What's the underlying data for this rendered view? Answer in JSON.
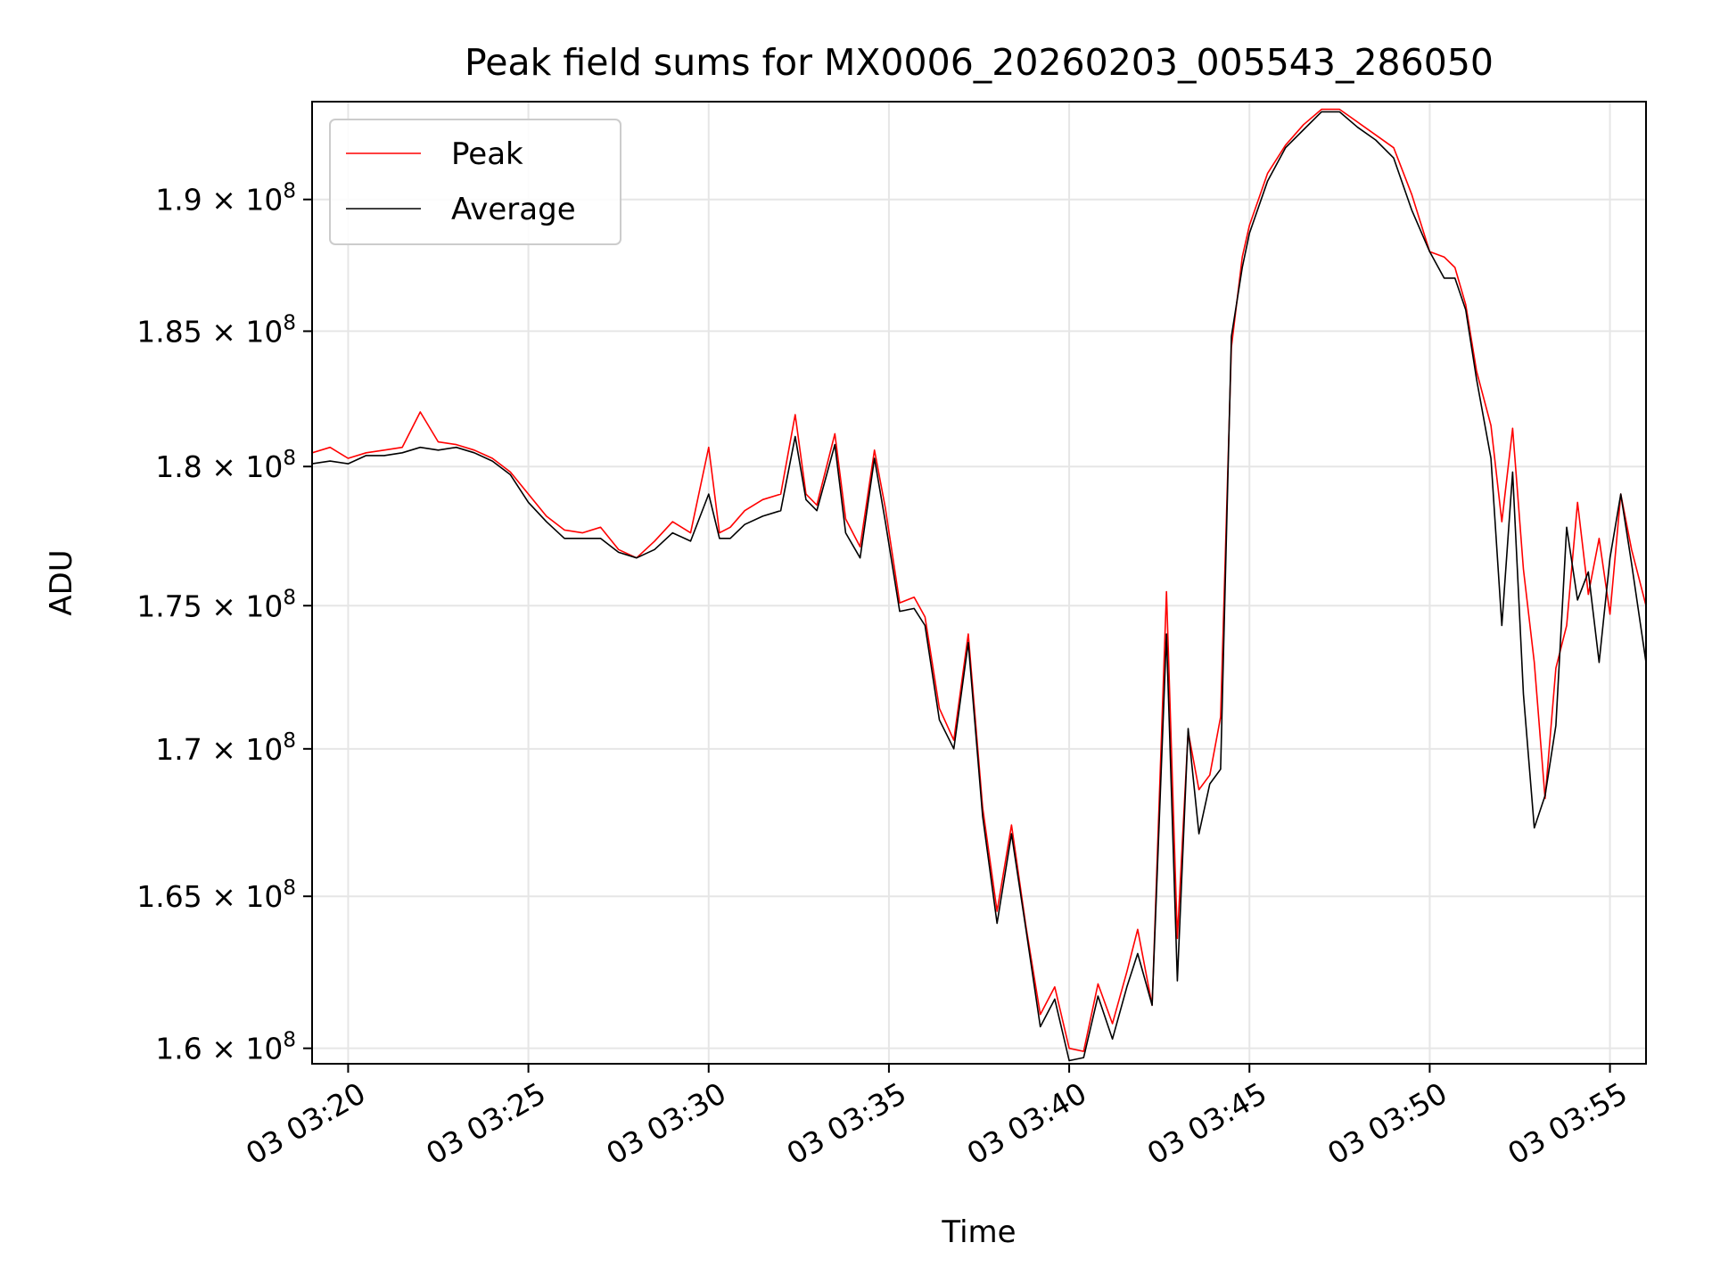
{
  "chart_data": {
    "type": "line",
    "title": "Peak field sums for MX0006_20260203_005543_286050",
    "xlabel": "Time",
    "ylabel": "ADU",
    "x_range_minutes": [
      199.0,
      236.0
    ],
    "y_range": [
      159500000,
      193800000
    ],
    "y_scale": "log",
    "grid": true,
    "legend_position": "upper-left",
    "x_ticks": [
      {
        "t": 200,
        "label": "03 03:20"
      },
      {
        "t": 205,
        "label": "03 03:25"
      },
      {
        "t": 210,
        "label": "03 03:30"
      },
      {
        "t": 215,
        "label": "03 03:35"
      },
      {
        "t": 220,
        "label": "03 03:40"
      },
      {
        "t": 225,
        "label": "03 03:45"
      },
      {
        "t": 230,
        "label": "03 03:50"
      },
      {
        "t": 235,
        "label": "03 03:55"
      }
    ],
    "y_ticks": [
      {
        "v": 160000000,
        "mant": "1.6",
        "exp": "8"
      },
      {
        "v": 165000000,
        "mant": "1.65",
        "exp": "8"
      },
      {
        "v": 170000000,
        "mant": "1.7",
        "exp": "8"
      },
      {
        "v": 175000000,
        "mant": "1.75",
        "exp": "8"
      },
      {
        "v": 180000000,
        "mant": "1.8",
        "exp": "8"
      },
      {
        "v": 185000000,
        "mant": "1.85",
        "exp": "8"
      },
      {
        "v": 190000000,
        "mant": "1.9",
        "exp": "8"
      }
    ],
    "series": [
      {
        "name": "Peak",
        "color": "#ff0000",
        "t": [
          199.0,
          199.5,
          200.0,
          200.5,
          201.0,
          201.5,
          202.0,
          202.5,
          203.0,
          203.5,
          204.0,
          204.5,
          205.0,
          205.5,
          206.0,
          206.5,
          207.0,
          207.5,
          208.0,
          208.5,
          209.0,
          209.5,
          210.0,
          210.3,
          210.6,
          211.0,
          211.5,
          212.0,
          212.4,
          212.7,
          213.0,
          213.5,
          213.8,
          214.2,
          214.6,
          214.9,
          215.3,
          215.7,
          216.0,
          216.4,
          216.8,
          217.2,
          217.6,
          218.0,
          218.4,
          218.8,
          219.2,
          219.6,
          220.0,
          220.4,
          220.8,
          221.2,
          221.6,
          221.9,
          222.3,
          222.7,
          223.0,
          223.3,
          223.6,
          223.9,
          224.2,
          224.5,
          224.8,
          225.0,
          225.5,
          226.0,
          226.5,
          227.0,
          227.5,
          228.0,
          228.5,
          229.0,
          229.5,
          230.0,
          230.4,
          230.7,
          231.0,
          231.3,
          231.7,
          232.0,
          232.3,
          232.6,
          232.9,
          233.2,
          233.5,
          233.8,
          234.1,
          234.4,
          234.7,
          235.0,
          235.3,
          235.6,
          236.0
        ],
        "v": [
          180500000,
          180700000,
          180300000,
          180500000,
          180600000,
          180700000,
          182000000,
          180900000,
          180800000,
          180600000,
          180300000,
          179800000,
          179000000,
          178200000,
          177700000,
          177600000,
          177800000,
          177000000,
          176700000,
          177300000,
          178000000,
          177600000,
          180700000,
          177600000,
          177800000,
          178400000,
          178800000,
          179000000,
          181900000,
          179000000,
          178600000,
          181200000,
          178100000,
          177100000,
          180600000,
          178500000,
          175100000,
          175300000,
          174600000,
          171400000,
          170300000,
          174000000,
          168000000,
          164500000,
          167400000,
          164000000,
          161100000,
          162000000,
          160000000,
          159900000,
          162100000,
          160800000,
          162500000,
          163900000,
          161400000,
          175500000,
          163600000,
          170600000,
          168600000,
          169100000,
          171100000,
          184400000,
          187800000,
          189000000,
          191000000,
          192100000,
          192900000,
          193500000,
          193500000,
          193000000,
          192500000,
          192000000,
          190200000,
          188000000,
          187800000,
          187400000,
          186000000,
          183500000,
          181500000,
          178000000,
          181400000,
          176300000,
          173000000,
          168300000,
          172800000,
          174300000,
          178700000,
          175400000,
          177400000,
          174700000,
          179000000,
          177000000,
          175000000
        ]
      },
      {
        "name": "Average",
        "color": "#000000",
        "t": [
          199.0,
          199.5,
          200.0,
          200.5,
          201.0,
          201.5,
          202.0,
          202.5,
          203.0,
          203.5,
          204.0,
          204.5,
          205.0,
          205.5,
          206.0,
          206.5,
          207.0,
          207.5,
          208.0,
          208.5,
          209.0,
          209.5,
          210.0,
          210.3,
          210.6,
          211.0,
          211.5,
          212.0,
          212.4,
          212.7,
          213.0,
          213.5,
          213.8,
          214.2,
          214.6,
          214.9,
          215.3,
          215.7,
          216.0,
          216.4,
          216.8,
          217.2,
          217.6,
          218.0,
          218.4,
          218.8,
          219.2,
          219.6,
          220.0,
          220.4,
          220.8,
          221.2,
          221.6,
          221.9,
          222.3,
          222.7,
          223.0,
          223.3,
          223.6,
          223.9,
          224.2,
          224.5,
          224.8,
          225.0,
          225.5,
          226.0,
          226.5,
          227.0,
          227.5,
          228.0,
          228.5,
          229.0,
          229.5,
          230.0,
          230.4,
          230.7,
          231.0,
          231.3,
          231.7,
          232.0,
          232.3,
          232.6,
          232.9,
          233.2,
          233.5,
          233.8,
          234.1,
          234.4,
          234.7,
          235.0,
          235.3,
          235.6,
          236.0
        ],
        "v": [
          180100000,
          180200000,
          180100000,
          180400000,
          180400000,
          180500000,
          180700000,
          180600000,
          180700000,
          180500000,
          180200000,
          179700000,
          178700000,
          178000000,
          177400000,
          177400000,
          177400000,
          176900000,
          176700000,
          177000000,
          177600000,
          177300000,
          179000000,
          177400000,
          177400000,
          177900000,
          178200000,
          178400000,
          181100000,
          178800000,
          178400000,
          180800000,
          177600000,
          176700000,
          180300000,
          178000000,
          174800000,
          174900000,
          174300000,
          171000000,
          170000000,
          173700000,
          167700000,
          164100000,
          167100000,
          163900000,
          160700000,
          161600000,
          159600000,
          159700000,
          161700000,
          160300000,
          162000000,
          163100000,
          161400000,
          174000000,
          162200000,
          170700000,
          167100000,
          168800000,
          169300000,
          184800000,
          187400000,
          188700000,
          190700000,
          192000000,
          192700000,
          193400000,
          193400000,
          192800000,
          192300000,
          191600000,
          189600000,
          188000000,
          187000000,
          187000000,
          185800000,
          183200000,
          180300000,
          174300000,
          179800000,
          171900000,
          167300000,
          168400000,
          170800000,
          177800000,
          175200000,
          176200000,
          173000000,
          176700000,
          179000000,
          176500000,
          173000000
        ]
      }
    ]
  }
}
